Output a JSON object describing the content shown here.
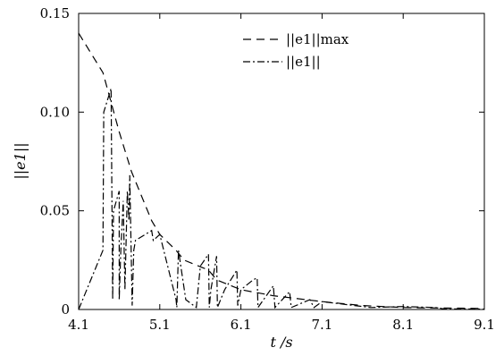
{
  "chart_data": {
    "type": "line",
    "xlabel": "t /s",
    "ylabel": "||e1||",
    "xlim": [
      4.1,
      9.1
    ],
    "ylim": [
      0,
      0.15
    ],
    "x_ticks": [
      4.1,
      5.1,
      6.1,
      7.1,
      8.1,
      9.1
    ],
    "x_tick_labels": [
      "4.1",
      "5.1",
      "6.1",
      "7.1",
      "8.1",
      "9.1"
    ],
    "y_ticks": [
      0,
      0.05,
      0.1,
      0.15
    ],
    "y_tick_labels": [
      "0",
      "0.05",
      "0.10",
      "0.15"
    ],
    "grid": false,
    "legend_position": "top-right",
    "series": [
      {
        "name": "||e1||max",
        "style": "dashed",
        "x": [
          4.1,
          4.4,
          4.5,
          4.6,
          4.75,
          5.0,
          5.1,
          5.3,
          5.4,
          5.7,
          5.8,
          6.1,
          6.5,
          7.1,
          7.6,
          8.1,
          9.1
        ],
        "y": [
          0.14,
          0.12,
          0.105,
          0.09,
          0.07,
          0.045,
          0.038,
          0.03,
          0.025,
          0.02,
          0.015,
          0.01,
          0.007,
          0.004,
          0.002,
          0.001,
          0.0005
        ]
      },
      {
        "name": "||e1||",
        "style": "dashdot",
        "x": [
          4.1,
          4.4,
          4.41,
          4.5,
          4.52,
          4.53,
          4.6,
          4.6,
          4.62,
          4.65,
          4.67,
          4.7,
          4.72,
          4.73,
          4.76,
          4.78,
          4.8,
          5.0,
          5.02,
          5.1,
          5.3,
          5.31,
          5.33,
          5.42,
          5.55,
          5.6,
          5.7,
          5.71,
          5.73,
          5.8,
          5.81,
          5.9,
          6.05,
          6.06,
          6.1,
          6.25,
          6.3,
          6.31,
          6.5,
          6.52,
          6.7,
          6.72,
          6.95,
          7.0,
          7.1,
          7.5,
          7.7,
          8.1,
          8.5,
          8.6,
          9.1
        ],
        "y": [
          0,
          0.03,
          0.1,
          0.112,
          0.005,
          0.05,
          0.06,
          0.005,
          0.03,
          0.055,
          0.01,
          0.06,
          0.045,
          0.068,
          0.002,
          0.03,
          0.035,
          0.04,
          0.035,
          0.038,
          0.005,
          0.001,
          0.03,
          0.005,
          0.001,
          0.022,
          0.028,
          0.001,
          0.01,
          0.027,
          0.001,
          0.01,
          0.02,
          0.002,
          0.01,
          0.015,
          0.016,
          0.001,
          0.012,
          0.001,
          0.009,
          0.001,
          0.005,
          0.001,
          0.004,
          0.002,
          0.001,
          0.0015,
          0.001,
          0.0003,
          0.0002
        ]
      }
    ]
  }
}
